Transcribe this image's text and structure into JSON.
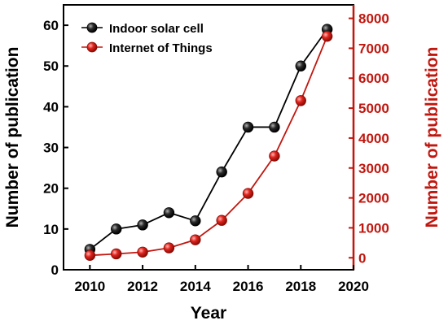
{
  "chart_data": {
    "type": "line",
    "title": "",
    "xlabel": "Year",
    "ylabel_left": "Number of publication",
    "ylabel_right": "Number of publication",
    "xlim": [
      2009,
      2020
    ],
    "ylim_left": [
      0,
      65
    ],
    "ylim_right": [
      -400,
      8450
    ],
    "x_ticks": [
      2010,
      2012,
      2014,
      2016,
      2018,
      2020
    ],
    "y_ticks_left": [
      0,
      10,
      20,
      30,
      40,
      50,
      60
    ],
    "y_ticks_right": [
      0,
      1000,
      2000,
      3000,
      4000,
      5000,
      6000,
      7000,
      8000
    ],
    "grid": false,
    "legend_position": "top-left",
    "colors": {
      "left_axis": "#000000",
      "right_axis": "#c0170f"
    },
    "series": [
      {
        "name": "Indoor solar cell",
        "axis": "left",
        "color": "#000000",
        "x": [
          2010,
          2011,
          2012,
          2013,
          2014,
          2015,
          2016,
          2017,
          2018,
          2019
        ],
        "y": [
          5,
          10,
          11,
          14,
          12,
          24,
          35,
          35,
          50,
          59
        ]
      },
      {
        "name": "Internet of Things",
        "axis": "right",
        "color": "#c0170f",
        "x": [
          2010,
          2011,
          2012,
          2013,
          2014,
          2015,
          2016,
          2017,
          2018,
          2019
        ],
        "y": [
          80,
          130,
          190,
          330,
          600,
          1250,
          2150,
          3400,
          5250,
          7400
        ]
      }
    ]
  }
}
